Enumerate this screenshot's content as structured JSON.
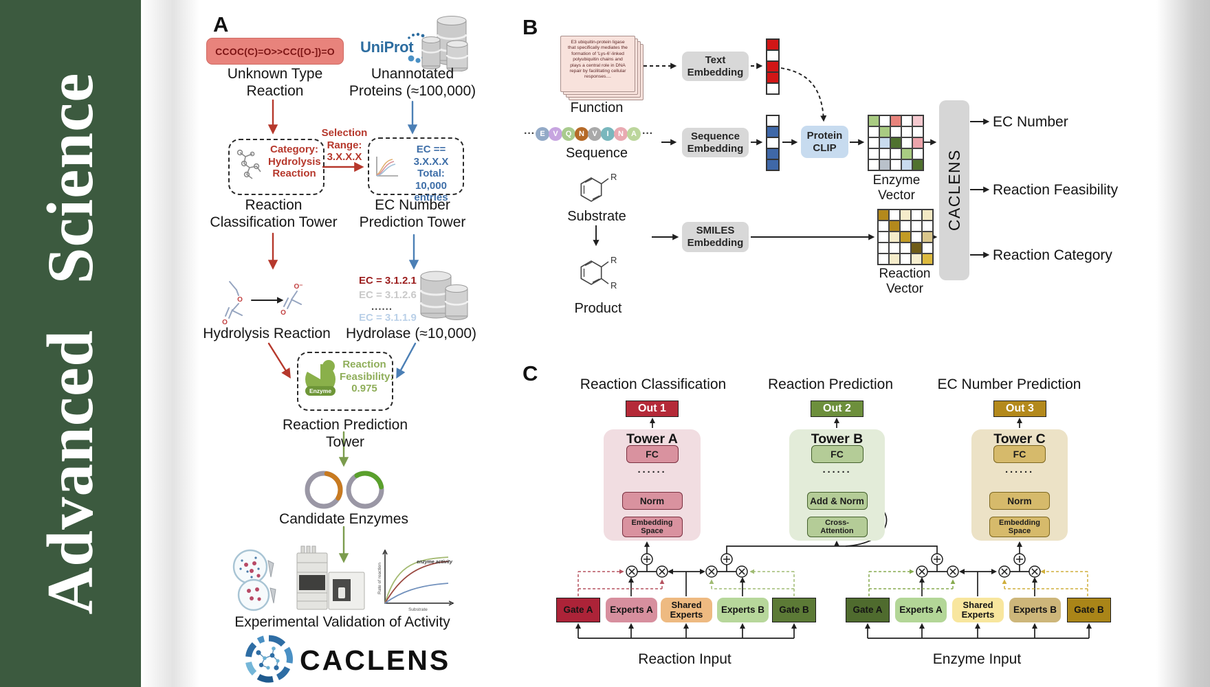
{
  "journal": {
    "title": "Advanced  Science"
  },
  "panelA": {
    "label": "A",
    "smiles": "CCOC(C)=O>>CC([O-])=O",
    "unknown_reaction": "Unknown Type\nReaction",
    "uniprot": "UniProt",
    "unannotated": "Unannotated\nProteins (≈100,000)",
    "selection": "Selection\nRange:\n3.X.X.X",
    "category": "Category:\nHydrolysis\nReaction",
    "ec_filter": "EC == 3.X.X.X\nTotal: 10,000\nentries",
    "classification_tower": "Reaction\nClassification Tower",
    "ec_tower": "EC Number\nPrediction Tower",
    "hydrolysis": "Hydrolysis Reaction",
    "ec_list": [
      "EC = 3.1.2.1",
      "EC = 3.1.2.6",
      "......",
      "EC = 3.1.1.9"
    ],
    "hydrolase": "Hydrolase (≈10,000)",
    "enzyme": "Enzyme",
    "feasibility": "Reaction\nFeasibility:\n0.975",
    "prediction_tower": "Reaction Prediction Tower",
    "candidates": "Candidate Enzymes",
    "validation": "Experimental Validation of Activity",
    "logo": "CACLENS",
    "atoms": {
      "o1": "O",
      "o2": "O",
      "o3": "O⁻",
      "o4": "O"
    },
    "kinetics": {
      "annotation": "enzyme activity",
      "ylabel": "Rate of reaction",
      "xlabel": "Substrate"
    }
  },
  "panelB": {
    "label": "B",
    "card_text": "E3 ubiquitin-protein ligase\nthat specifically mediates the\nformation of 'Lys-6'-linked\npolyubiquitin chains and\nplays a central role in DNA\nrepair by facilitating cellular\nresponses....",
    "function": "Function",
    "ellipsis_left": "···",
    "ellipsis_right": "···",
    "residues": [
      {
        "ch": "E",
        "color": "#93aac7"
      },
      {
        "ch": "V",
        "color": "#c7a5e0"
      },
      {
        "ch": "Q",
        "color": "#a9cb8e"
      },
      {
        "ch": "N",
        "color": "#b56a28"
      },
      {
        "ch": "V",
        "color": "#a9a9a9"
      },
      {
        "ch": "I",
        "color": "#79b7bd"
      },
      {
        "ch": "N",
        "color": "#e9aab2"
      },
      {
        "ch": "A",
        "color": "#bcd69c"
      }
    ],
    "sequence": "Sequence",
    "substrate": "Substrate",
    "product": "Product",
    "r1": "R",
    "r2": "R",
    "r3": "R",
    "text_embedding": "Text\nEmbedding",
    "sequence_embedding": "Sequence\nEmbedding",
    "smiles_embedding": "SMILES\nEmbedding",
    "protein_clip": "Protein\nCLIP",
    "enzyme_vector": "Enzyme Vector",
    "reaction_vector": "Reaction Vector",
    "caclens": "CACLENS",
    "outputs": [
      "EC Number",
      "Reaction Feasibility",
      "Reaction Category"
    ],
    "text_vector": [
      "#d11616",
      "#ffffff",
      "#d11616",
      "#d11616",
      "#ffffff"
    ],
    "seq_vector": [
      "#ffffff",
      "#3f68a8",
      "#ffffff",
      "#3f68a8",
      "#3f68a8"
    ]
  },
  "panelC": {
    "label": "C",
    "headers": [
      "Reaction Classification",
      "Reaction Prediction",
      "EC Number Prediction"
    ],
    "towers": [
      {
        "out": "Out 1",
        "name": "Tower A",
        "fc": "FC",
        "dots": "······",
        "mid": "Norm",
        "base": "Embedding\nSpace"
      },
      {
        "out": "Out 2",
        "name": "Tower B",
        "fc": "FC",
        "dots": "······",
        "mid": "Add & Norm",
        "base": "Cross-\nAttention"
      },
      {
        "out": "Out 3",
        "name": "Tower C",
        "fc": "FC",
        "dots": "······",
        "mid": "Norm",
        "base": "Embedding\nSpace"
      }
    ],
    "moe_left": {
      "gate_a": "Gate A",
      "experts_a": "Experts A",
      "shared": "Shared\nExperts",
      "experts_b": "Experts B",
      "gate_b": "Gate B",
      "input": "Reaction Input"
    },
    "moe_right": {
      "gate_a": "Gate A",
      "experts_a": "Experts A",
      "shared": "Shared\nExperts",
      "experts_b": "Experts B",
      "gate_b": "Gate B",
      "input": "Enzyme Input"
    }
  },
  "grids": {
    "enzyme": [
      [
        "#a9cb82",
        "#ffffff",
        "#e8837c",
        "#ffffff",
        "#f5c9cf"
      ],
      [
        "#ffffff",
        "#a9cb82",
        "#ffffff",
        "#ffffff",
        "#ffffff"
      ],
      [
        "#ffffff",
        "#c9dbee",
        "#50722f",
        "#ffffff",
        "#eda4ab"
      ],
      [
        "#ffffff",
        "#ffffff",
        "#ffffff",
        "#a9cb82",
        "#ffffff"
      ],
      [
        "#ffffff",
        "#b9c1ca",
        "#ffffff",
        "#c9dbee",
        "#50722f"
      ]
    ],
    "reaction": [
      [
        "#b3891c",
        "#ffffff",
        "#f5ecca",
        "#ffffff",
        "#f3e9c4"
      ],
      [
        "#ffffff",
        "#b3891c",
        "#ffffff",
        "#ffffff",
        "#ffffff"
      ],
      [
        "#ffffff",
        "#f5ecca",
        "#c29b25",
        "#ffffff",
        "#d9c68c"
      ],
      [
        "#ffffff",
        "#ffffff",
        "#ffffff",
        "#6f5c18",
        "#ffffff"
      ],
      [
        "#ffffff",
        "#f5ecca",
        "#ffffff",
        "#f7efcf",
        "#ddba3e"
      ]
    ]
  }
}
